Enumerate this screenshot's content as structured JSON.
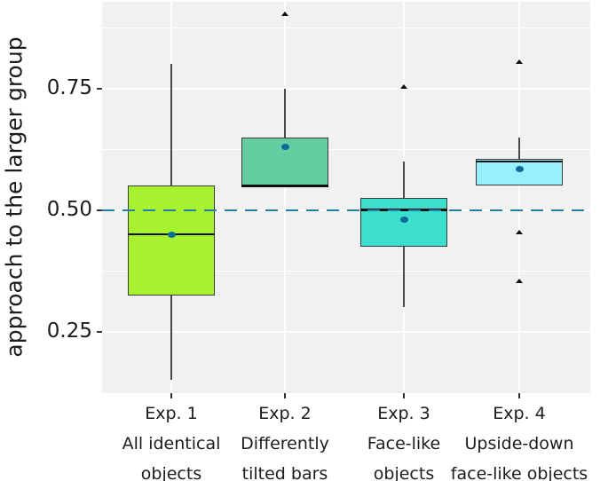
{
  "figure": {
    "background": "#ffffff",
    "plot_background": "#f1f1f1",
    "grid_color": "#ffffff",
    "text_color": "#1c1c1c",
    "tick_mark_color": "#333333"
  },
  "chart_data": {
    "type": "box",
    "title": "",
    "xlabel": "",
    "ylabel": "approach to the larger group",
    "ylim": [
      0.12,
      0.93
    ],
    "grid": true,
    "legend_position": "none",
    "yticks": [
      0.75,
      0.5,
      0.25
    ],
    "ytick_labels": [
      "0.75",
      "0.50",
      "0.25"
    ],
    "minor_gridlines": [
      0.875,
      0.625,
      0.375
    ],
    "reference_line": {
      "value": 0.5,
      "style": "dashed",
      "color": "#2480A8"
    },
    "box_border_color": "#3a3a3a",
    "median_color": "#111111",
    "whisker_color": "#4a4a4a",
    "mean_marker_color": "#0D6B99",
    "outlier_marker": "triangle-up",
    "outlier_color": "#111111",
    "groups": [
      {
        "label_lines": [
          "Exp. 1",
          "All identical",
          "objects"
        ],
        "fill": "#A6F22F",
        "whisker_low": 0.15,
        "q1": 0.325,
        "median": 0.45,
        "q3": 0.55,
        "whisker_high": 0.8,
        "mean": 0.45,
        "outliers": []
      },
      {
        "label_lines": [
          "Exp. 2",
          "Differently",
          "tilted bars"
        ],
        "fill": "#64CDA1",
        "whisker_low": 0.55,
        "q1": 0.55,
        "median": 0.55,
        "q3": 0.65,
        "whisker_high": 0.75,
        "mean": 0.63,
        "outliers": [
          0.9
        ]
      },
      {
        "label_lines": [
          "Exp. 3",
          "Face-like",
          "objects"
        ],
        "fill": "#3CDECD",
        "whisker_low": 0.3,
        "q1": 0.425,
        "median": 0.5,
        "q3": 0.525,
        "whisker_high": 0.6,
        "mean": 0.48,
        "outliers": [
          0.75
        ]
      },
      {
        "label_lines": [
          "Exp. 4",
          "Upside-down",
          "face-like objects"
        ],
        "fill": "#99F0FD",
        "whisker_low": 0.55,
        "q1": 0.55,
        "median": 0.6,
        "q3": 0.605,
        "whisker_high": 0.65,
        "mean": 0.585,
        "outliers": [
          0.8,
          0.45,
          0.35
        ]
      }
    ]
  }
}
